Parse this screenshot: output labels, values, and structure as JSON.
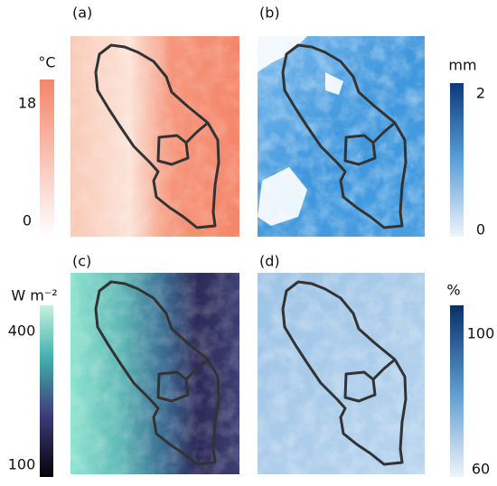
{
  "panels": [
    {
      "label": "(a)",
      "colorbar": {
        "unit": "°C",
        "ticks": [
          18,
          0
        ]
      }
    },
    {
      "label": "(b)",
      "colorbar": {
        "unit": "mm",
        "ticks": [
          2,
          0
        ]
      }
    },
    {
      "label": "(c)",
      "colorbar": {
        "unit": "W m⁻²",
        "ticks": [
          400,
          100
        ]
      }
    },
    {
      "label": "(d)",
      "colorbar": {
        "unit": "%",
        "ticks": [
          100,
          60
        ]
      }
    }
  ]
}
